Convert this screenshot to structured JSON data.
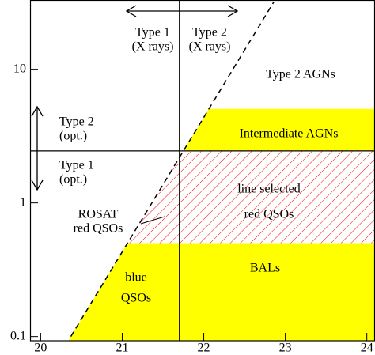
{
  "chart_data": {
    "type": "region",
    "xlim": [
      19.87,
      24.1
    ],
    "ylim": [
      0.093,
      33
    ],
    "log_y": true,
    "xticks": [
      20,
      21,
      22,
      23,
      24
    ],
    "yticks": [
      0.1,
      1,
      10
    ],
    "boundary_line": {
      "x": [
        20.37,
        22.86
      ],
      "y": [
        0.1,
        32
      ]
    },
    "x_divider": 21.7,
    "y_divider": 2.45,
    "regions": [
      {
        "name": [
          "Intermediate AGNs"
        ],
        "color": "#ffff00",
        "hatch": false,
        "ylim": [
          2.45,
          5.05
        ]
      },
      {
        "name": [
          "line selected",
          "red QSOs"
        ],
        "color": "#ff0000",
        "hatch": true,
        "ylim": [
          0.5,
          2.45
        ]
      },
      {
        "name": [
          "BALs"
        ],
        "color": "#ffff00",
        "hatch": false,
        "ylim": [
          0.093,
          0.5
        ]
      }
    ],
    "labels": [
      [
        "Type 2 AGNs"
      ],
      [
        "blue",
        "QSOs"
      ],
      [
        "ROSAT",
        "red QSOs"
      ],
      [
        "Type 1",
        "(X rays)"
      ],
      [
        "Type 2",
        "(X rays)"
      ],
      [
        "Type 2",
        "(opt.)"
      ],
      [
        "Type 1",
        "(opt.)"
      ]
    ]
  }
}
